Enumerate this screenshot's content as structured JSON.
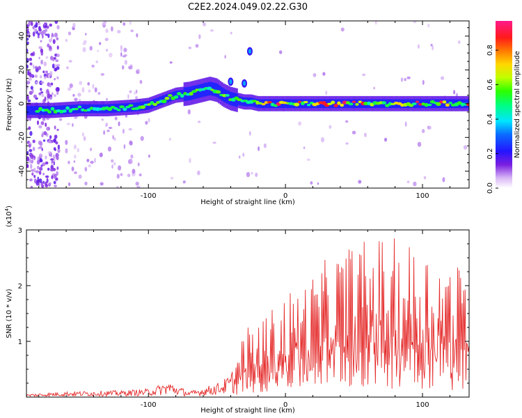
{
  "figure": {
    "title": "C2E2.2024.049.02.22.G30"
  },
  "chart_data": [
    {
      "type": "heatmap",
      "title": "C2E2.2024.049.02.22.G30",
      "xlabel": "Height of straight line (km)",
      "ylabel": "Frequency (Hz)",
      "xlim": [
        -189,
        134
      ],
      "ylim": [
        -50,
        49
      ],
      "xticks": [
        -100,
        0,
        100
      ],
      "xtick_labels": [
        "-100",
        "0",
        "100"
      ],
      "yticks": [
        -40,
        -20,
        0,
        20,
        40
      ],
      "ytick_labels": [
        "-40",
        "-20",
        "0",
        "20",
        "40"
      ],
      "grid": false,
      "colorbar": {
        "label": "Normalized spectral amplitude",
        "range": [
          0.0,
          0.97
        ],
        "ticks": [
          0.0,
          0.2,
          0.4,
          0.6,
          0.8
        ],
        "tick_labels": [
          "0.0",
          "0.2",
          "0.4",
          "0.6",
          "0.8"
        ],
        "colormap": "rainbow-white-to-magenta"
      },
      "ridge": {
        "x": [
          -189,
          -170,
          -150,
          -130,
          -110,
          -100,
          -90,
          -80,
          -70,
          -60,
          -55,
          -50,
          -45,
          -40,
          -35,
          -30,
          -25,
          -20,
          0,
          20,
          40,
          60,
          80,
          100,
          120,
          134
        ],
        "y": [
          -4,
          -4,
          -3,
          -3,
          -2,
          -1,
          2,
          5,
          6,
          8,
          9,
          8,
          5,
          3,
          2,
          1,
          1,
          0,
          0,
          0,
          0,
          0,
          0,
          0,
          0,
          0
        ]
      },
      "side_blobs": [
        {
          "x": -26,
          "y": 31
        },
        {
          "x": -40,
          "y": 13
        },
        {
          "x": -30,
          "y": 12
        }
      ]
    },
    {
      "type": "line",
      "xlabel": "Height of straight line (km)",
      "ylabel": "SNR (10 * v/v)",
      "y_scale_label": "(x10",
      "y_scale_exponent": "4",
      "y_scale_close": ")",
      "xlim": [
        -189,
        134
      ],
      "ylim": [
        0,
        3
      ],
      "xticks": [
        -100,
        0,
        100
      ],
      "xtick_labels": [
        "-100",
        "0",
        "100"
      ],
      "yticks": [
        1,
        2,
        3
      ],
      "ytick_labels": [
        "1",
        "2",
        "3"
      ],
      "grid": false,
      "series": [
        {
          "color": "#e52b2b",
          "envelope_x": [
            -189,
            -160,
            -120,
            -100,
            -85,
            -70,
            -50,
            -40,
            -30,
            -20,
            -10,
            0,
            10,
            20,
            30,
            50,
            70,
            90,
            110,
            134
          ],
          "envelope_y": [
            0.05,
            0.1,
            0.12,
            0.15,
            0.28,
            0.1,
            0.25,
            0.4,
            1.2,
            1.4,
            1.6,
            1.9,
            2.0,
            2.2,
            2.5,
            2.8,
            2.9,
            2.8,
            2.6,
            2.3
          ]
        }
      ]
    }
  ]
}
